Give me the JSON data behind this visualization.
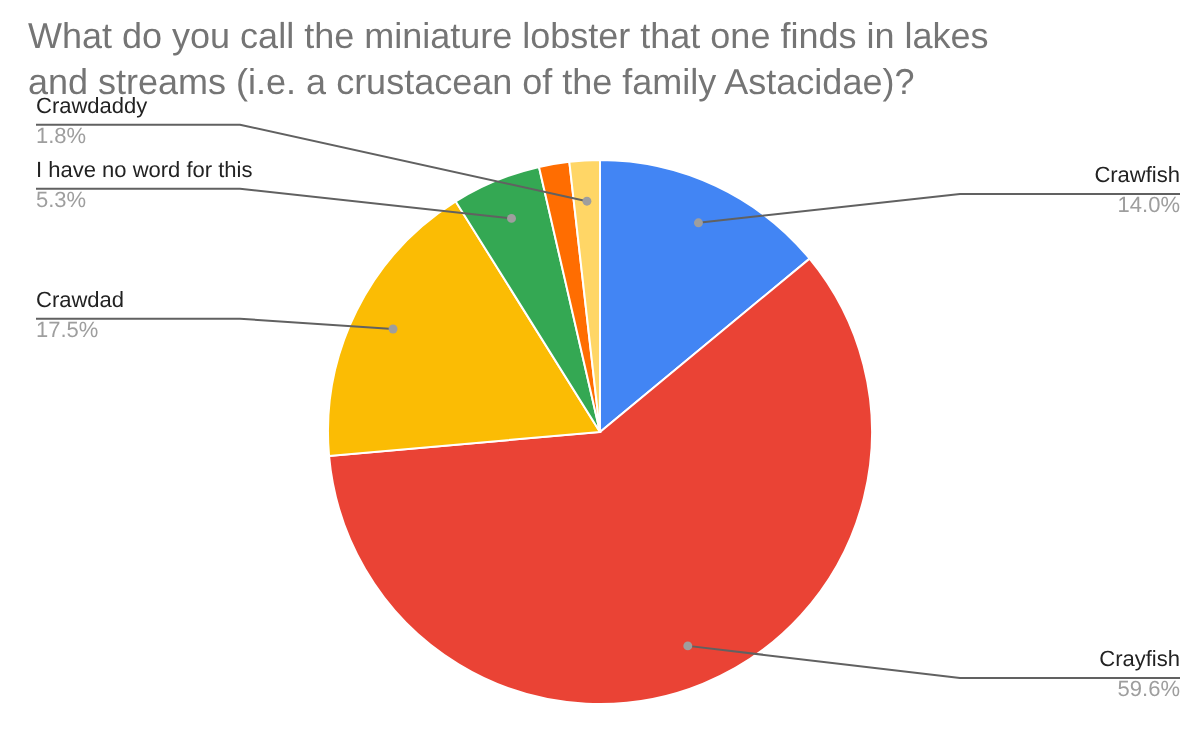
{
  "chart_data": {
    "type": "pie",
    "title": "What do you call the miniature lobster that one finds in lakes and streams (i.e. a crustacean of the family Astacidae)?",
    "categories": [
      "Crawfish",
      "Crayfish",
      "Crawdad",
      "I have no word for this",
      null,
      "Crawdaddy"
    ],
    "values": [
      14.0,
      59.6,
      17.5,
      5.3,
      1.8,
      1.8
    ],
    "value_labels": [
      "14.0%",
      "59.6%",
      "17.5%",
      "5.3%",
      null,
      "1.8%"
    ],
    "colors": [
      "#4285f4",
      "#ea4335",
      "#fbbc04",
      "#34a853",
      "#ff6d01",
      "#ffd666"
    ]
  }
}
